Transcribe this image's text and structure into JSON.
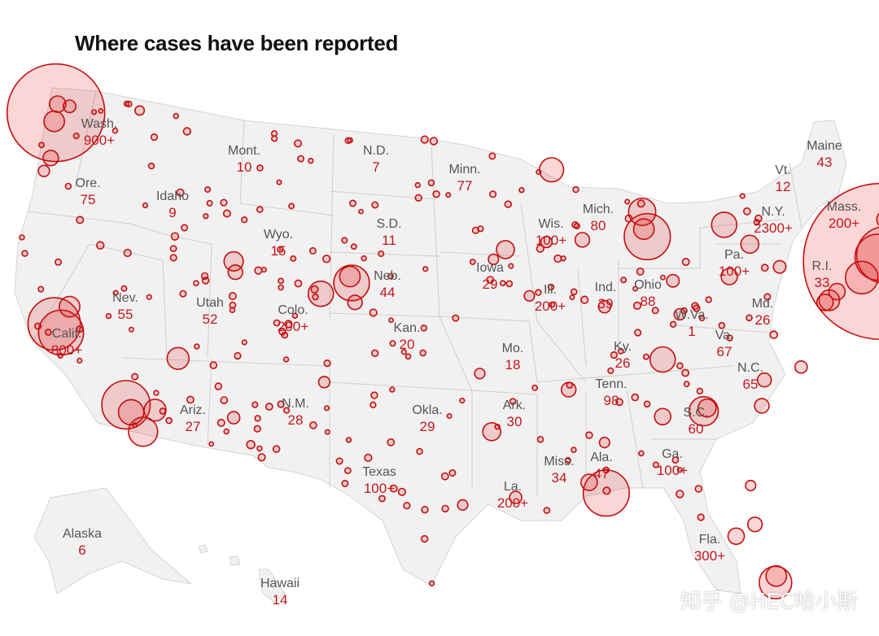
{
  "title": "Where cases have been reported",
  "watermark": "知乎 @HEC哈小斯",
  "colors": {
    "bubble": "#e11d1d",
    "land": "#f1f1f1",
    "border": "#cfcfcf",
    "count_text": "#c4161c",
    "name_text": "#555555"
  },
  "labels": [
    {
      "id": "wash",
      "name": "Wash.",
      "count": "900+"
    },
    {
      "id": "ore",
      "name": "Ore.",
      "count": "75"
    },
    {
      "id": "idaho",
      "name": "Idaho",
      "count": "9"
    },
    {
      "id": "mont",
      "name": "Mont.",
      "count": "10"
    },
    {
      "id": "wyo",
      "name": "Wyo.",
      "count": "15"
    },
    {
      "id": "nd",
      "name": "N.D.",
      "count": "7"
    },
    {
      "id": "sd",
      "name": "S.D.",
      "count": "11"
    },
    {
      "id": "minn",
      "name": "Minn.",
      "count": "77"
    },
    {
      "id": "neb",
      "name": "Neb.",
      "count": "44"
    },
    {
      "id": "iowa",
      "name": "Iowa",
      "count": "29"
    },
    {
      "id": "nev",
      "name": "Nev.",
      "count": "55"
    },
    {
      "id": "utah",
      "name": "Utah",
      "count": "52"
    },
    {
      "id": "colo",
      "name": "Colo.",
      "count": "200+"
    },
    {
      "id": "calif",
      "name": "Calif.",
      "count": "800+"
    },
    {
      "id": "kan",
      "name": "Kan.",
      "count": "20"
    },
    {
      "id": "mo",
      "name": "Mo.",
      "count": "18"
    },
    {
      "id": "ill",
      "name": "Ill.",
      "count": "200+"
    },
    {
      "id": "wis",
      "name": "Wis.",
      "count": "100+"
    },
    {
      "id": "mich",
      "name": "Mich.",
      "count": "80"
    },
    {
      "id": "ind",
      "name": "Ind.",
      "count": "39"
    },
    {
      "id": "ohio",
      "name": "Ohio",
      "count": "88"
    },
    {
      "id": "ky",
      "name": "Ky.",
      "count": "26"
    },
    {
      "id": "wva",
      "name": "W.Va.",
      "count": "1"
    },
    {
      "id": "va",
      "name": "Va.",
      "count": "67"
    },
    {
      "id": "pa",
      "name": "Pa.",
      "count": "100+"
    },
    {
      "id": "ny",
      "name": "N.Y.",
      "count": "2300+"
    },
    {
      "id": "ri",
      "name": "R.I.",
      "count": "33"
    },
    {
      "id": "md",
      "name": "Md.",
      "count": "26"
    },
    {
      "id": "vt",
      "name": "Vt.",
      "count": "12"
    },
    {
      "id": "maine",
      "name": "Maine",
      "count": "43"
    },
    {
      "id": "mass",
      "name": "Mass.",
      "count": "200+"
    },
    {
      "id": "nc",
      "name": "N.C.",
      "count": "65"
    },
    {
      "id": "sc",
      "name": "S.C.",
      "count": "60"
    },
    {
      "id": "tenn",
      "name": "Tenn.",
      "count": "98"
    },
    {
      "id": "ark",
      "name": "Ark.",
      "count": "30"
    },
    {
      "id": "okla",
      "name": "Okla.",
      "count": "29"
    },
    {
      "id": "texas",
      "name": "Texas",
      "count": "100+"
    },
    {
      "id": "nm",
      "name": "N.M.",
      "count": "28"
    },
    {
      "id": "ariz",
      "name": "Ariz.",
      "count": "27"
    },
    {
      "id": "miss",
      "name": "Miss.",
      "count": "34"
    },
    {
      "id": "ala",
      "name": "Ala.",
      "count": "47"
    },
    {
      "id": "ga",
      "name": "Ga.",
      "count": "100+"
    },
    {
      "id": "la",
      "name": "La.",
      "count": "200+"
    },
    {
      "id": "fla",
      "name": "Fla.",
      "count": "300+"
    },
    {
      "id": "alaska",
      "name": "Alaska",
      "count": "6"
    },
    {
      "id": "hawaii",
      "name": "Hawaii",
      "count": "14"
    }
  ],
  "outbreak_bubbles": [
    {
      "lon": -122.3,
      "lat": 47.6,
      "cases": 900
    },
    {
      "lon": -122.4,
      "lat": 47.2,
      "cases": 40
    },
    {
      "lon": -122.2,
      "lat": 48.0,
      "cases": 25
    },
    {
      "lon": -121.5,
      "lat": 47.9,
      "cases": 15
    },
    {
      "lon": -117.4,
      "lat": 47.7,
      "cases": 8
    },
    {
      "lon": -122.6,
      "lat": 45.5,
      "cases": 22
    },
    {
      "lon": -123.0,
      "lat": 44.9,
      "cases": 12
    },
    {
      "lon": -122.4,
      "lat": 37.8,
      "cases": 260
    },
    {
      "lon": -122.0,
      "lat": 37.4,
      "cases": 190
    },
    {
      "lon": -121.5,
      "lat": 38.6,
      "cases": 40
    },
    {
      "lon": -118.2,
      "lat": 34.05,
      "cases": 220
    },
    {
      "lon": -117.9,
      "lat": 33.7,
      "cases": 60
    },
    {
      "lon": -117.2,
      "lat": 32.8,
      "cases": 80
    },
    {
      "lon": -116.5,
      "lat": 33.8,
      "cases": 45
    },
    {
      "lon": -115.15,
      "lat": 36.2,
      "cases": 45
    },
    {
      "lon": -111.9,
      "lat": 40.7,
      "cases": 35
    },
    {
      "lon": -111.8,
      "lat": 40.2,
      "cases": 20
    },
    {
      "lon": -111.9,
      "lat": 33.45,
      "cases": 14
    },
    {
      "lon": -110.9,
      "lat": 32.2,
      "cases": 6
    },
    {
      "lon": -106.6,
      "lat": 35.1,
      "cases": 12
    },
    {
      "lon": -105.0,
      "lat": 39.7,
      "cases": 120
    },
    {
      "lon": -105.1,
      "lat": 40.0,
      "cases": 40
    },
    {
      "lon": -106.8,
      "lat": 39.2,
      "cases": 60
    },
    {
      "lon": -104.8,
      "lat": 38.8,
      "cases": 20
    },
    {
      "lon": -96.7,
      "lat": 40.8,
      "cases": 10
    },
    {
      "lon": -96.0,
      "lat": 41.25,
      "cases": 30
    },
    {
      "lon": -93.3,
      "lat": 44.95,
      "cases": 55
    },
    {
      "lon": -93.6,
      "lat": 41.6,
      "cases": 12
    },
    {
      "lon": -91.5,
      "lat": 41.7,
      "cases": 20
    },
    {
      "lon": -88.0,
      "lat": 43.0,
      "cases": 70
    },
    {
      "lon": -87.7,
      "lat": 41.85,
      "cases": 200
    },
    {
      "lon": -87.9,
      "lat": 42.2,
      "cases": 40
    },
    {
      "lon": -83.2,
      "lat": 42.4,
      "cases": 60
    },
    {
      "lon": -82.9,
      "lat": 40.0,
      "cases": 25
    },
    {
      "lon": -81.7,
      "lat": 41.5,
      "cases": 30
    },
    {
      "lon": -86.2,
      "lat": 39.8,
      "cases": 15
    },
    {
      "lon": -85.8,
      "lat": 38.25,
      "cases": 12
    },
    {
      "lon": -90.2,
      "lat": 38.6,
      "cases": 14
    },
    {
      "lon": -94.6,
      "lat": 39.1,
      "cases": 10
    },
    {
      "lon": -86.8,
      "lat": 36.15,
      "cases": 60
    },
    {
      "lon": -84.4,
      "lat": 33.75,
      "cases": 80
    },
    {
      "lon": -84.2,
      "lat": 33.9,
      "cases": 30
    },
    {
      "lon": -80.85,
      "lat": 35.2,
      "cases": 18
    },
    {
      "lon": -78.7,
      "lat": 35.8,
      "cases": 14
    },
    {
      "lon": -81.0,
      "lat": 34.0,
      "cases": 20
    },
    {
      "lon": -86.8,
      "lat": 33.5,
      "cases": 25
    },
    {
      "lon": -90.2,
      "lat": 32.3,
      "cases": 10
    },
    {
      "lon": -90.1,
      "lat": 29.95,
      "cases": 200
    },
    {
      "lon": -91.1,
      "lat": 30.45,
      "cases": 25
    },
    {
      "lon": -95.4,
      "lat": 29.75,
      "cases": 14
    },
    {
      "lon": -96.8,
      "lat": 32.8,
      "cases": 30
    },
    {
      "lon": -97.5,
      "lat": 35.5,
      "cases": 10
    },
    {
      "lon": -92.3,
      "lat": 34.75,
      "cases": 20
    },
    {
      "lon": -98.5,
      "lat": 29.4,
      "cases": 10
    },
    {
      "lon": -80.2,
      "lat": 25.8,
      "cases": 100
    },
    {
      "lon": -80.15,
      "lat": 26.1,
      "cases": 40
    },
    {
      "lon": -81.4,
      "lat": 28.5,
      "cases": 20
    },
    {
      "lon": -82.5,
      "lat": 27.95,
      "cases": 25
    },
    {
      "lon": -81.65,
      "lat": 30.3,
      "cases": 10
    },
    {
      "lon": -74.0,
      "lat": 40.7,
      "cases": 2300
    },
    {
      "lon": -73.8,
      "lat": 41.0,
      "cases": 300
    },
    {
      "lon": -74.2,
      "lat": 40.9,
      "cases": 200
    },
    {
      "lon": -75.15,
      "lat": 39.95,
      "cases": 100
    },
    {
      "lon": -71.05,
      "lat": 42.35,
      "cases": 200
    },
    {
      "lon": -71.4,
      "lat": 41.8,
      "cases": 30
    },
    {
      "lon": -72.7,
      "lat": 41.75,
      "cases": 40
    },
    {
      "lon": -73.75,
      "lat": 42.65,
      "cases": 30
    },
    {
      "lon": -76.6,
      "lat": 39.3,
      "cases": 25
    },
    {
      "lon": -77.05,
      "lat": 38.9,
      "cases": 40
    },
    {
      "lon": -77.3,
      "lat": 38.8,
      "cases": 25
    },
    {
      "lon": -79.95,
      "lat": 40.45,
      "cases": 15
    },
    {
      "lon": -70.25,
      "lat": 43.65,
      "cases": 20
    },
    {
      "lon": -73.2,
      "lat": 44.5,
      "cases": 8
    },
    {
      "lon": -80.3,
      "lat": 37.3,
      "cases": 5
    }
  ]
}
